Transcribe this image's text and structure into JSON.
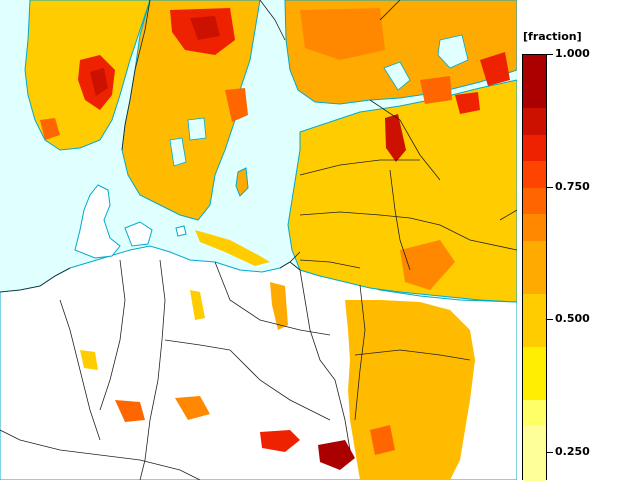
{
  "legend": {
    "title": "[fraction]",
    "ticks": [
      {
        "value": 1.0,
        "label": "1.000"
      },
      {
        "value": 0.75,
        "label": "0.750"
      },
      {
        "value": 0.5,
        "label": "0.500"
      },
      {
        "value": 0.25,
        "label": "0.250"
      }
    ],
    "bands": [
      {
        "from": 0.25,
        "to": 0.3,
        "color": "#ffff99"
      },
      {
        "from": 0.3,
        "to": 0.35,
        "color": "#ffff66"
      },
      {
        "from": 0.35,
        "to": 0.45,
        "color": "#ffee00"
      },
      {
        "from": 0.45,
        "to": 0.55,
        "color": "#ffcc00"
      },
      {
        "from": 0.55,
        "to": 0.65,
        "color": "#ffaa00"
      },
      {
        "from": 0.65,
        "to": 0.7,
        "color": "#ff8800"
      },
      {
        "from": 0.7,
        "to": 0.75,
        "color": "#ff6600"
      },
      {
        "from": 0.75,
        "to": 0.8,
        "color": "#ff4400"
      },
      {
        "from": 0.8,
        "to": 0.85,
        "color": "#ee2200"
      },
      {
        "from": 0.85,
        "to": 0.9,
        "color": "#cc1100"
      },
      {
        "from": 0.9,
        "to": 1.0,
        "color": "#aa0000"
      }
    ],
    "range": [
      0.25,
      1.0
    ]
  },
  "map": {
    "sea_color": "#e0ffff",
    "land_color": "#ffffff",
    "boundary_color": "#222222",
    "coast_color": "#00aacc"
  }
}
